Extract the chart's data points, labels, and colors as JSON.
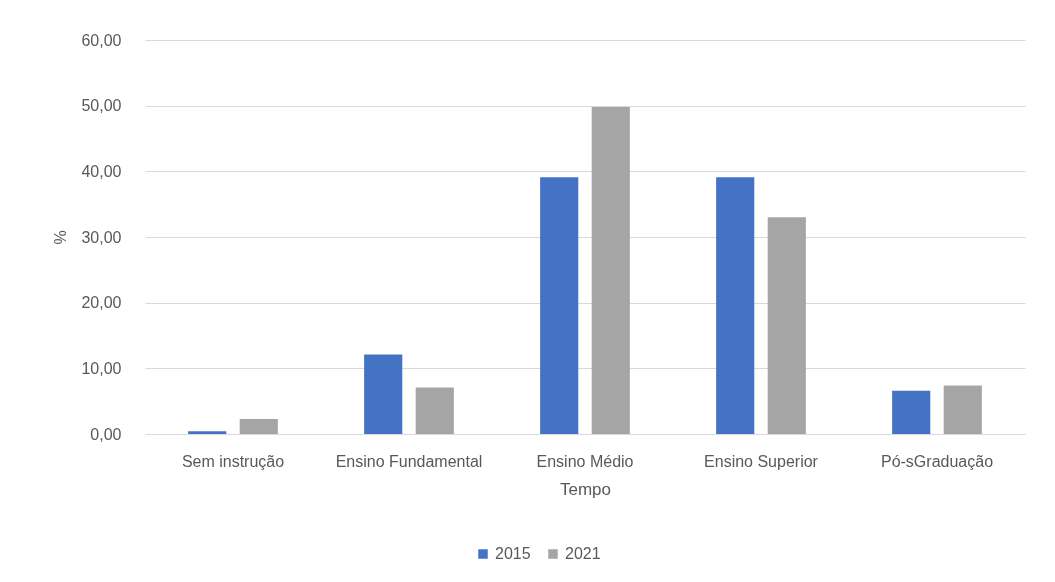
{
  "chart_data": {
    "type": "bar",
    "xlabel": "Tempo",
    "ylabel": "%",
    "categories": [
      "Sem instrução",
      "Ensino Fundamental",
      "Ensino Médio",
      "Ensino Superior",
      "Pó-sGraduação"
    ],
    "series": [
      {
        "name": "2015",
        "color": "#4472c4",
        "values": [
          0.4,
          12.1,
          39.1,
          39.1,
          6.6
        ]
      },
      {
        "name": "2021",
        "color": "#a5a5a5",
        "values": [
          2.3,
          7.1,
          49.8,
          33.0,
          7.4
        ]
      }
    ],
    "ylim": [
      0,
      60
    ],
    "yticks": [
      {
        "value": 0,
        "label": "0,00"
      },
      {
        "value": 10,
        "label": "10,00"
      },
      {
        "value": 20,
        "label": "20,00"
      },
      {
        "value": 30,
        "label": "30,00"
      },
      {
        "value": 40,
        "label": "40,00"
      },
      {
        "value": 50,
        "label": "50,00"
      },
      {
        "value": 60,
        "label": "60,00"
      }
    ],
    "grid": "y",
    "legend": "bottom"
  }
}
